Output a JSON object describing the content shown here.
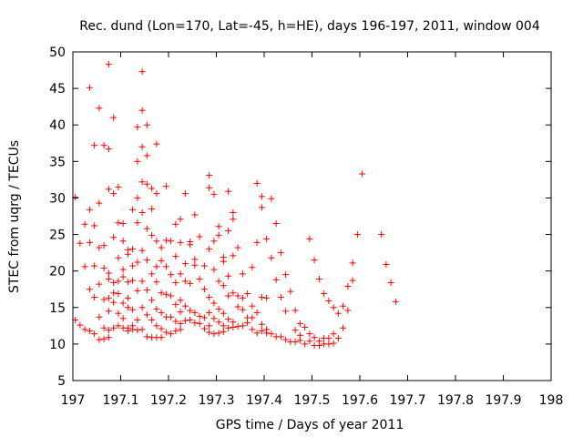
{
  "chart_data": {
    "type": "scatter",
    "title": "Rec. dund (Lon=170, Lat=-45, h=HE), days 196-197, 2011, window 004",
    "xlabel": "GPS time / Days of year 2011",
    "ylabel": "STEC from uqrg / TECUs",
    "xlim": [
      197,
      198
    ],
    "ylim": [
      5,
      50
    ],
    "xticks": [
      "197",
      "197.1",
      "197.2",
      "197.3",
      "197.4",
      "197.5",
      "197.6",
      "197.7",
      "197.8",
      "197.9",
      "198"
    ],
    "yticks": [
      "5",
      "10",
      "15",
      "20",
      "25",
      "30",
      "35",
      "40",
      "45",
      "50"
    ],
    "marker": "+",
    "color": "#ff0000",
    "grid": false,
    "points": [
      [
        197.005,
        30.1
      ],
      [
        197.005,
        13.3
      ],
      [
        197.015,
        23.8
      ],
      [
        197.015,
        12.6
      ],
      [
        197.025,
        26.4
      ],
      [
        197.025,
        20.6
      ],
      [
        197.025,
        12.0
      ],
      [
        197.035,
        45.1
      ],
      [
        197.035,
        28.4
      ],
      [
        197.035,
        23.9
      ],
      [
        197.035,
        17.5
      ],
      [
        197.035,
        11.8
      ],
      [
        197.045,
        37.2
      ],
      [
        197.045,
        26.2
      ],
      [
        197.045,
        20.7
      ],
      [
        197.045,
        16.4
      ],
      [
        197.045,
        11.4
      ],
      [
        197.055,
        42.3
      ],
      [
        197.055,
        29.3
      ],
      [
        197.055,
        23.2
      ],
      [
        197.055,
        18.2
      ],
      [
        197.055,
        13.7
      ],
      [
        197.055,
        10.6
      ],
      [
        197.065,
        37.2
      ],
      [
        197.065,
        23.5
      ],
      [
        197.065,
        20.4
      ],
      [
        197.065,
        16.1
      ],
      [
        197.065,
        12.2
      ],
      [
        197.065,
        10.7
      ],
      [
        197.075,
        48.3
      ],
      [
        197.075,
        36.7
      ],
      [
        197.075,
        31.2
      ],
      [
        197.075,
        19.7
      ],
      [
        197.075,
        18.9
      ],
      [
        197.075,
        16.3
      ],
      [
        197.075,
        14.5
      ],
      [
        197.075,
        11.9
      ],
      [
        197.075,
        10.9
      ],
      [
        197.085,
        41.0
      ],
      [
        197.085,
        30.6
      ],
      [
        197.085,
        24.6
      ],
      [
        197.085,
        18.4
      ],
      [
        197.085,
        17.0
      ],
      [
        197.085,
        15.7
      ],
      [
        197.085,
        12.2
      ],
      [
        197.095,
        31.5
      ],
      [
        197.095,
        26.6
      ],
      [
        197.095,
        21.8
      ],
      [
        197.095,
        18.6
      ],
      [
        197.095,
        16.9
      ],
      [
        197.095,
        14.2
      ],
      [
        197.095,
        12.5
      ],
      [
        197.105,
        26.5
      ],
      [
        197.105,
        24.1
      ],
      [
        197.105,
        20.2
      ],
      [
        197.105,
        19.2
      ],
      [
        197.105,
        15.6
      ],
      [
        197.105,
        13.5
      ],
      [
        197.105,
        12.2
      ],
      [
        197.115,
        22.9
      ],
      [
        197.115,
        22.3
      ],
      [
        197.115,
        18.5
      ],
      [
        197.115,
        16.3
      ],
      [
        197.115,
        15.0
      ],
      [
        197.115,
        12.2
      ],
      [
        197.115,
        11.8
      ],
      [
        197.125,
        28.4
      ],
      [
        197.125,
        23.0
      ],
      [
        197.125,
        20.7
      ],
      [
        197.125,
        18.7
      ],
      [
        197.125,
        14.7
      ],
      [
        197.125,
        12.5
      ],
      [
        197.125,
        12.0
      ],
      [
        197.135,
        39.7
      ],
      [
        197.135,
        35.0
      ],
      [
        197.135,
        30.0
      ],
      [
        197.135,
        26.6
      ],
      [
        197.135,
        21.2
      ],
      [
        197.135,
        17.3
      ],
      [
        197.135,
        13.3
      ],
      [
        197.135,
        11.9
      ],
      [
        197.145,
        47.3
      ],
      [
        197.145,
        42.0
      ],
      [
        197.145,
        37.0
      ],
      [
        197.145,
        32.2
      ],
      [
        197.145,
        28.0
      ],
      [
        197.145,
        22.8
      ],
      [
        197.145,
        18.6
      ],
      [
        197.145,
        15.0
      ],
      [
        197.145,
        12.0
      ],
      [
        197.155,
        40.0
      ],
      [
        197.155,
        35.8
      ],
      [
        197.155,
        31.9
      ],
      [
        197.155,
        25.8
      ],
      [
        197.155,
        21.5
      ],
      [
        197.155,
        17.4
      ],
      [
        197.155,
        14.0
      ],
      [
        197.155,
        11.0
      ],
      [
        197.165,
        31.3
      ],
      [
        197.165,
        28.5
      ],
      [
        197.165,
        24.9
      ],
      [
        197.165,
        19.6
      ],
      [
        197.165,
        16.0
      ],
      [
        197.165,
        13.3
      ],
      [
        197.165,
        10.9
      ],
      [
        197.175,
        37.4
      ],
      [
        197.175,
        30.6
      ],
      [
        197.175,
        24.1
      ],
      [
        197.175,
        20.6
      ],
      [
        197.175,
        18.5
      ],
      [
        197.175,
        14.8
      ],
      [
        197.175,
        12.5
      ],
      [
        197.175,
        10.9
      ],
      [
        197.185,
        23.2
      ],
      [
        197.185,
        21.4
      ],
      [
        197.185,
        17.0
      ],
      [
        197.185,
        14.3
      ],
      [
        197.185,
        12.1
      ],
      [
        197.185,
        10.9
      ],
      [
        197.195,
        31.6
      ],
      [
        197.195,
        24.2
      ],
      [
        197.195,
        20.6
      ],
      [
        197.195,
        16.8
      ],
      [
        197.195,
        13.7
      ],
      [
        197.195,
        11.6
      ],
      [
        197.205,
        24.1
      ],
      [
        197.205,
        19.5
      ],
      [
        197.205,
        16.6
      ],
      [
        197.205,
        13.7
      ],
      [
        197.205,
        11.4
      ],
      [
        197.215,
        26.4
      ],
      [
        197.215,
        22.0
      ],
      [
        197.215,
        18.4
      ],
      [
        197.215,
        15.4
      ],
      [
        197.215,
        13.1
      ],
      [
        197.215,
        11.8
      ],
      [
        197.225,
        27.1
      ],
      [
        197.225,
        23.9
      ],
      [
        197.225,
        19.6
      ],
      [
        197.225,
        16.0
      ],
      [
        197.225,
        14.4
      ],
      [
        197.225,
        12.8
      ],
      [
        197.225,
        12.0
      ],
      [
        197.235,
        30.6
      ],
      [
        197.235,
        21.0
      ],
      [
        197.235,
        18.6
      ],
      [
        197.235,
        15.2
      ],
      [
        197.235,
        13.2
      ],
      [
        197.245,
        24.0
      ],
      [
        197.245,
        23.6
      ],
      [
        197.245,
        18.3
      ],
      [
        197.245,
        14.6
      ],
      [
        197.245,
        13.3
      ],
      [
        197.255,
        27.7
      ],
      [
        197.255,
        21.6
      ],
      [
        197.255,
        20.8
      ],
      [
        197.255,
        14.3
      ],
      [
        197.255,
        12.9
      ],
      [
        197.265,
        24.7
      ],
      [
        197.265,
        18.9
      ],
      [
        197.265,
        13.8
      ],
      [
        197.265,
        12.8
      ],
      [
        197.275,
        20.7
      ],
      [
        197.275,
        17.5
      ],
      [
        197.275,
        13.6
      ],
      [
        197.275,
        12.1
      ],
      [
        197.285,
        33.1
      ],
      [
        197.285,
        31.4
      ],
      [
        197.285,
        23.0
      ],
      [
        197.285,
        16.4
      ],
      [
        197.285,
        14.3
      ],
      [
        197.285,
        12.5
      ],
      [
        197.285,
        11.6
      ],
      [
        197.295,
        30.5
      ],
      [
        197.295,
        24.1
      ],
      [
        197.295,
        20.2
      ],
      [
        197.295,
        15.6
      ],
      [
        197.295,
        13.5
      ],
      [
        197.295,
        11.4
      ],
      [
        197.305,
        26.1
      ],
      [
        197.305,
        24.9
      ],
      [
        197.305,
        18.6
      ],
      [
        197.305,
        14.8
      ],
      [
        197.305,
        13.0
      ],
      [
        197.305,
        11.5
      ],
      [
        197.315,
        21.9
      ],
      [
        197.315,
        21.3
      ],
      [
        197.315,
        18.0
      ],
      [
        197.315,
        14.2
      ],
      [
        197.315,
        12.5
      ],
      [
        197.315,
        11.7
      ],
      [
        197.325,
        30.9
      ],
      [
        197.325,
        25.5
      ],
      [
        197.325,
        19.3
      ],
      [
        197.325,
        16.6
      ],
      [
        197.325,
        13.4
      ],
      [
        197.325,
        12.2
      ],
      [
        197.335,
        28.0
      ],
      [
        197.335,
        27.1
      ],
      [
        197.335,
        22.1
      ],
      [
        197.335,
        17.0
      ],
      [
        197.335,
        13.0
      ],
      [
        197.335,
        12.3
      ],
      [
        197.345,
        23.2
      ],
      [
        197.345,
        16.6
      ],
      [
        197.345,
        15.1
      ],
      [
        197.345,
        12.4
      ],
      [
        197.355,
        19.6
      ],
      [
        197.355,
        16.3
      ],
      [
        197.355,
        14.7
      ],
      [
        197.355,
        12.5
      ],
      [
        197.365,
        16.9
      ],
      [
        197.365,
        13.6
      ],
      [
        197.365,
        12.9
      ],
      [
        197.375,
        20.5
      ],
      [
        197.375,
        15.2
      ],
      [
        197.375,
        13.6
      ],
      [
        197.375,
        12.0
      ],
      [
        197.385,
        32.0
      ],
      [
        197.385,
        23.9
      ],
      [
        197.385,
        14.3
      ],
      [
        197.385,
        11.5
      ],
      [
        197.395,
        30.2
      ],
      [
        197.395,
        28.7
      ],
      [
        197.395,
        16.4
      ],
      [
        197.395,
        12.7
      ],
      [
        197.395,
        11.8
      ],
      [
        197.405,
        24.4
      ],
      [
        197.405,
        16.3
      ],
      [
        197.405,
        12.0
      ],
      [
        197.405,
        11.5
      ],
      [
        197.415,
        29.9
      ],
      [
        197.415,
        21.8
      ],
      [
        197.415,
        11.4
      ],
      [
        197.425,
        26.5
      ],
      [
        197.425,
        18.8
      ],
      [
        197.425,
        11.0
      ],
      [
        197.435,
        22.5
      ],
      [
        197.435,
        16.4
      ],
      [
        197.435,
        11.0
      ],
      [
        197.445,
        19.5
      ],
      [
        197.445,
        14.5
      ],
      [
        197.445,
        10.6
      ],
      [
        197.455,
        17.2
      ],
      [
        197.455,
        10.3
      ],
      [
        197.465,
        14.6
      ],
      [
        197.465,
        11.9
      ],
      [
        197.465,
        10.3
      ],
      [
        197.475,
        12.8
      ],
      [
        197.475,
        11.2
      ],
      [
        197.475,
        10.5
      ],
      [
        197.485,
        12.3
      ],
      [
        197.485,
        10.0
      ],
      [
        197.495,
        24.4
      ],
      [
        197.495,
        11.4
      ],
      [
        197.495,
        10.4
      ],
      [
        197.505,
        21.5
      ],
      [
        197.505,
        10.9
      ],
      [
        197.505,
        9.8
      ],
      [
        197.515,
        18.9
      ],
      [
        197.515,
        10.4
      ],
      [
        197.515,
        9.8
      ],
      [
        197.525,
        16.9
      ],
      [
        197.525,
        10.8
      ],
      [
        197.525,
        10.0
      ],
      [
        197.535,
        15.9
      ],
      [
        197.535,
        10.8
      ],
      [
        197.535,
        10.0
      ],
      [
        197.545,
        15.0
      ],
      [
        197.545,
        11.4
      ],
      [
        197.545,
        10.1
      ],
      [
        197.555,
        14.2
      ],
      [
        197.555,
        10.8
      ],
      [
        197.565,
        12.2
      ],
      [
        197.565,
        15.2
      ],
      [
        197.575,
        17.9
      ],
      [
        197.575,
        14.6
      ],
      [
        197.585,
        18.7
      ],
      [
        197.585,
        21.1
      ],
      [
        197.595,
        25.0
      ],
      [
        197.605,
        33.3
      ],
      [
        197.645,
        25.0
      ],
      [
        197.655,
        20.9
      ],
      [
        197.665,
        18.4
      ],
      [
        197.675,
        15.8
      ]
    ]
  }
}
